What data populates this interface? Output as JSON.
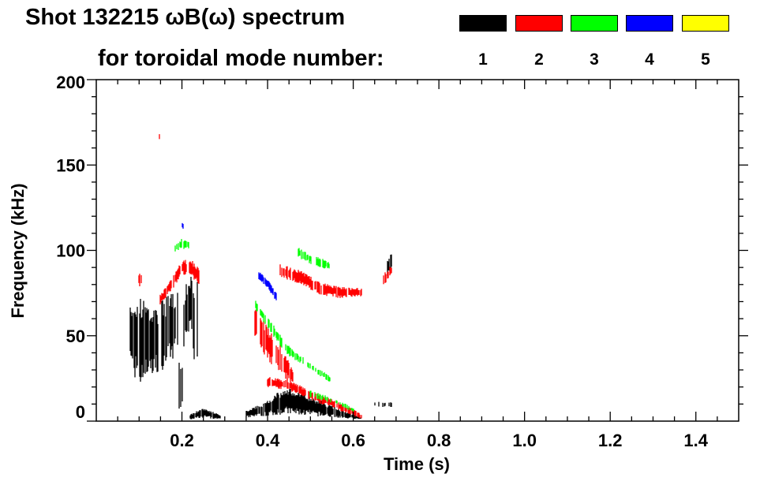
{
  "chart_data": {
    "type": "heatmap",
    "title": "Shot 132215 ωB(ω) spectrum",
    "subtitle": "for toroidal mode number:",
    "xlabel": "Time (s)",
    "ylabel": "Frequency (kHz)",
    "xlim": [
      0,
      1.5
    ],
    "ylim": [
      0,
      200
    ],
    "xticks": [
      "0.2",
      "0.4",
      "0.6",
      "0.8",
      "1.0",
      "1.2",
      "1.4"
    ],
    "xtick_values": [
      0.2,
      0.4,
      0.6,
      0.8,
      1.0,
      1.2,
      1.4
    ],
    "yticks": [
      "0",
      "50",
      "100",
      "150",
      "200"
    ],
    "ytick_values": [
      0,
      50,
      100,
      150,
      200
    ],
    "legend": [
      {
        "label": "1",
        "color": "#000000"
      },
      {
        "label": "2",
        "color": "#ff0000"
      },
      {
        "label": "3",
        "color": "#00ff00"
      },
      {
        "label": "4",
        "color": "#0000ff"
      },
      {
        "label": "5",
        "color": "#ffff00"
      }
    ],
    "features": [
      {
        "mode": 1,
        "density": 0.8,
        "points": [
          [
            0.08,
            30,
            70
          ],
          [
            0.1,
            20,
            78
          ],
          [
            0.13,
            25,
            65
          ],
          [
            0.16,
            30,
            72
          ],
          [
            0.19,
            40,
            78
          ]
        ]
      },
      {
        "mode": 1,
        "density": 0.6,
        "points": [
          [
            0.19,
            5,
            40
          ],
          [
            0.2,
            5,
            35
          ]
        ]
      },
      {
        "mode": 1,
        "density": 0.7,
        "points": [
          [
            0.205,
            40,
            80
          ],
          [
            0.22,
            55,
            85
          ],
          [
            0.235,
            20,
            82
          ]
        ]
      },
      {
        "mode": 1,
        "density": 0.9,
        "points": [
          [
            0.22,
            1,
            4
          ],
          [
            0.25,
            2,
            8
          ],
          [
            0.28,
            1,
            5
          ],
          [
            0.29,
            1,
            3
          ]
        ]
      },
      {
        "mode": 1,
        "density": 0.9,
        "points": [
          [
            0.35,
            2,
            6
          ],
          [
            0.4,
            3,
            12
          ],
          [
            0.44,
            4,
            20
          ],
          [
            0.5,
            3,
            15
          ],
          [
            0.56,
            2,
            8
          ],
          [
            0.62,
            1,
            2
          ]
        ]
      },
      {
        "mode": 1,
        "density": 0.5,
        "points": [
          [
            0.65,
            8,
            12
          ],
          [
            0.69,
            8,
            11
          ]
        ]
      },
      {
        "mode": 1,
        "density": 0.6,
        "points": [
          [
            0.68,
            85,
            95
          ],
          [
            0.69,
            90,
            100
          ]
        ]
      },
      {
        "mode": 2,
        "density": 0.6,
        "points": [
          [
            0.1,
            78,
            88
          ],
          [
            0.105,
            80,
            86
          ]
        ]
      },
      {
        "mode": 2,
        "density": 0.8,
        "points": [
          [
            0.15,
            68,
            74
          ],
          [
            0.18,
            78,
            86
          ],
          [
            0.2,
            86,
            94
          ],
          [
            0.22,
            85,
            95
          ],
          [
            0.24,
            80,
            90
          ]
        ]
      },
      {
        "mode": 2,
        "density": 0.5,
        "points": [
          [
            0.145,
            164,
            170
          ],
          [
            0.148,
            164,
            168
          ]
        ]
      },
      {
        "mode": 2,
        "density": 0.7,
        "points": [
          [
            0.37,
            50,
            70
          ],
          [
            0.4,
            35,
            55
          ],
          [
            0.43,
            28,
            45
          ],
          [
            0.46,
            20,
            30
          ]
        ]
      },
      {
        "mode": 2,
        "density": 0.8,
        "points": [
          [
            0.4,
            20,
            26
          ],
          [
            0.45,
            18,
            24
          ],
          [
            0.5,
            12,
            18
          ],
          [
            0.55,
            8,
            13
          ],
          [
            0.6,
            3,
            7
          ],
          [
            0.62,
            1,
            4
          ]
        ]
      },
      {
        "mode": 2,
        "density": 0.85,
        "points": [
          [
            0.43,
            84,
            92
          ],
          [
            0.48,
            80,
            88
          ],
          [
            0.52,
            74,
            82
          ],
          [
            0.57,
            72,
            79
          ],
          [
            0.62,
            73,
            78
          ]
        ]
      },
      {
        "mode": 2,
        "density": 0.6,
        "points": [
          [
            0.67,
            78,
            86
          ],
          [
            0.69,
            85,
            92
          ]
        ]
      },
      {
        "mode": 3,
        "density": 0.6,
        "points": [
          [
            0.18,
            98,
            103
          ],
          [
            0.2,
            101,
            107
          ],
          [
            0.22,
            100,
            106
          ]
        ]
      },
      {
        "mode": 3,
        "density": 0.55,
        "points": [
          [
            0.37,
            66,
            72
          ],
          [
            0.41,
            50,
            58
          ],
          [
            0.45,
            38,
            44
          ],
          [
            0.5,
            30,
            34
          ],
          [
            0.55,
            22,
            26
          ]
        ]
      },
      {
        "mode": 3,
        "density": 0.55,
        "points": [
          [
            0.47,
            96,
            102
          ],
          [
            0.5,
            92,
            98
          ],
          [
            0.55,
            88,
            93
          ]
        ]
      },
      {
        "mode": 3,
        "density": 0.5,
        "points": [
          [
            0.5,
            14,
            18
          ],
          [
            0.56,
            10,
            13
          ],
          [
            0.6,
            5,
            8
          ]
        ]
      },
      {
        "mode": 4,
        "density": 0.85,
        "points": [
          [
            0.38,
            83,
            88
          ],
          [
            0.4,
            78,
            83
          ],
          [
            0.42,
            70,
            76
          ]
        ]
      },
      {
        "mode": 4,
        "density": 0.4,
        "points": [
          [
            0.2,
            113,
            117
          ],
          [
            0.205,
            112,
            116
          ]
        ]
      }
    ]
  }
}
